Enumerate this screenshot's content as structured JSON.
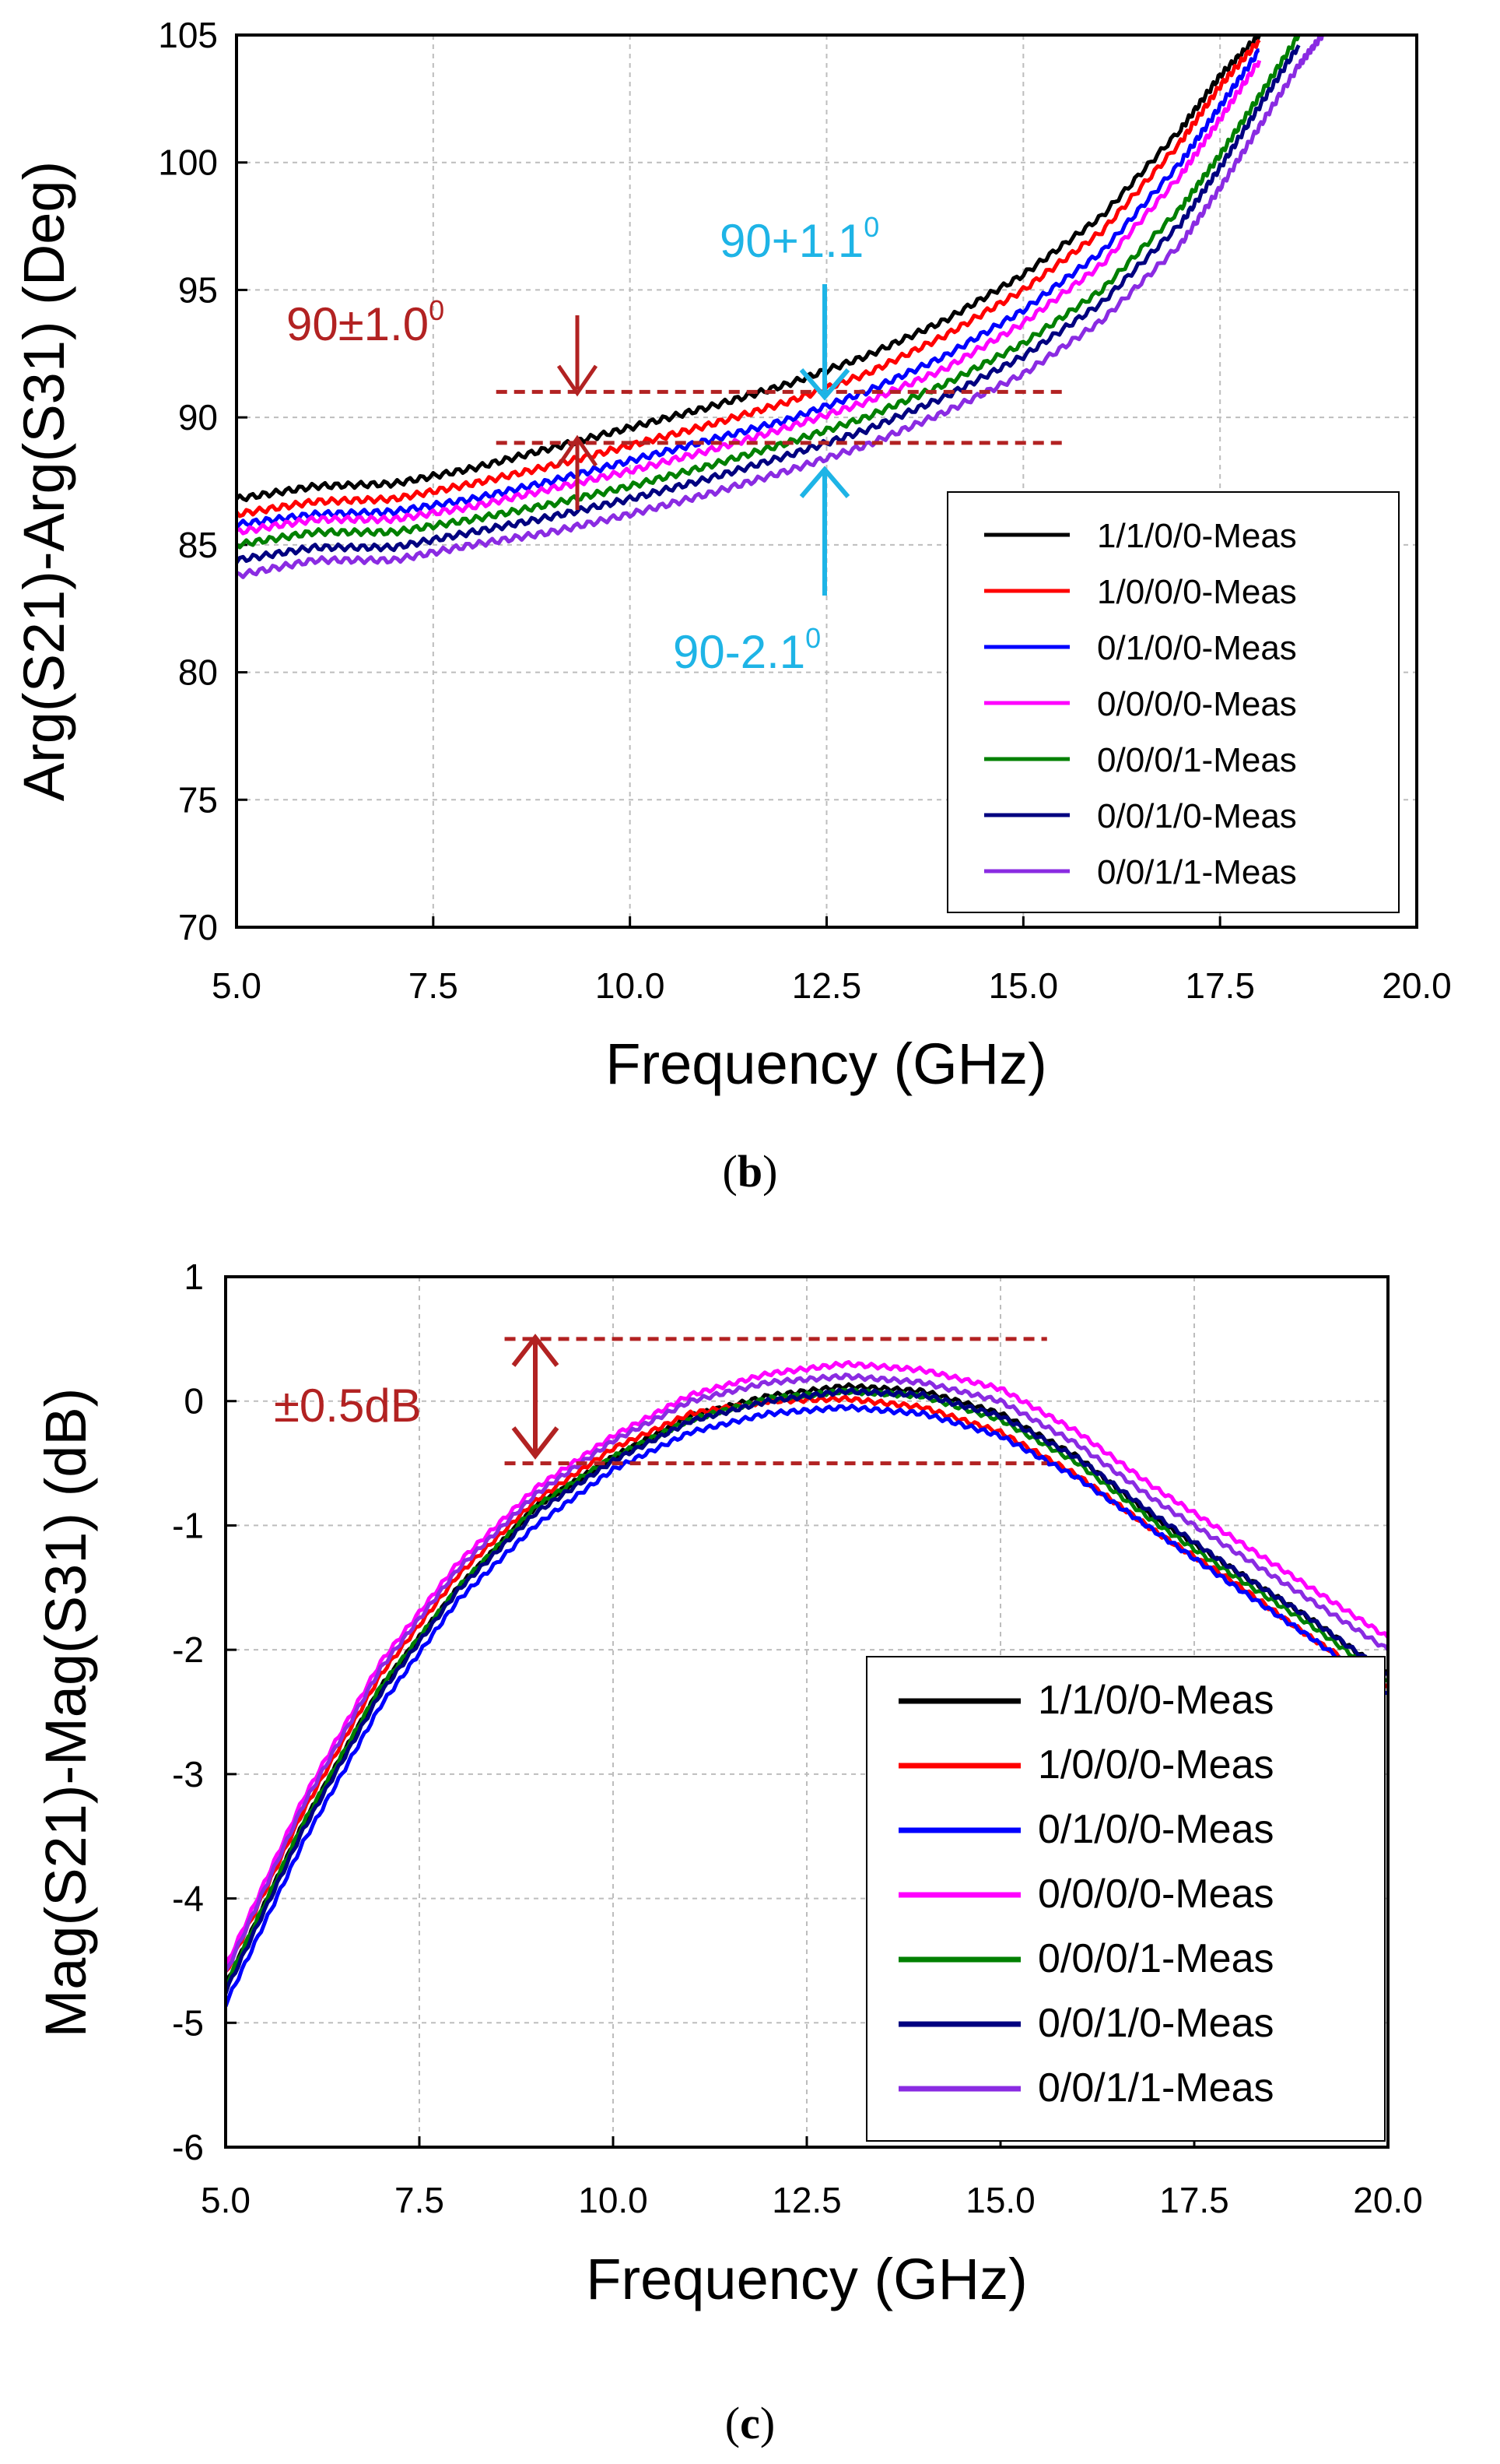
{
  "chart_data": [
    {
      "id": "b",
      "type": "line",
      "xlabel": "Frequency (GHz)",
      "ylabel": "Arg(S21)-Arg(S31) (Deg)",
      "xlim": [
        5.0,
        20.0
      ],
      "ylim": [
        70,
        105
      ],
      "xticks": [
        "5.0",
        "7.5",
        "10.0",
        "12.5",
        "15.0",
        "17.5",
        "20.0"
      ],
      "yticks": [
        "70",
        "75",
        "80",
        "85",
        "90",
        "95",
        "100",
        "105"
      ],
      "grid": true,
      "legend_position": "bottom-right",
      "caption": "b",
      "series": [
        {
          "name": "1/1/0/0-Meas",
          "color": "#000000",
          "x": [
            5.0,
            6.0,
            7.0,
            8.0,
            9.0,
            10.0,
            11.0,
            12.0,
            13.0,
            14.0,
            15.0,
            16.0,
            17.0,
            17.5,
            18.0
          ],
          "y": [
            86.8,
            87.3,
            87.4,
            88.0,
            88.8,
            89.6,
            90.4,
            91.3,
            92.4,
            93.8,
            95.6,
            97.9,
            101.3,
            103.4,
            105.0
          ]
        },
        {
          "name": "1/0/0/0-Meas",
          "color": "#ff0000",
          "x": [
            5.0,
            6.0,
            7.0,
            8.0,
            9.0,
            10.0,
            11.0,
            12.0,
            13.0,
            14.0,
            15.0,
            16.0,
            17.0,
            17.5,
            18.0
          ],
          "y": [
            86.2,
            86.7,
            86.8,
            87.4,
            88.1,
            88.9,
            89.7,
            90.6,
            91.7,
            93.2,
            95.0,
            97.3,
            100.8,
            103.0,
            104.8
          ]
        },
        {
          "name": "0/1/0/0-Meas",
          "color": "#0000ff",
          "x": [
            5.0,
            6.0,
            7.0,
            8.0,
            9.0,
            10.0,
            11.0,
            12.0,
            13.0,
            14.0,
            15.0,
            16.0,
            17.0,
            17.5,
            18.0
          ],
          "y": [
            85.8,
            86.2,
            86.3,
            86.8,
            87.5,
            88.3,
            89.1,
            89.9,
            91.0,
            92.4,
            94.2,
            96.5,
            100.0,
            102.2,
            104.4
          ]
        },
        {
          "name": "0/0/0/0-Meas",
          "color": "#ff00ff",
          "x": [
            5.0,
            6.0,
            7.0,
            8.0,
            9.0,
            10.0,
            11.0,
            12.0,
            13.0,
            14.0,
            15.0,
            16.0,
            17.0,
            17.5,
            18.0
          ],
          "y": [
            85.5,
            86.0,
            86.0,
            86.5,
            87.2,
            87.9,
            88.7,
            89.6,
            90.6,
            91.9,
            93.7,
            96.0,
            99.5,
            101.7,
            104.0
          ]
        },
        {
          "name": "0/0/0/1-Meas",
          "color": "#008000",
          "x": [
            5.0,
            6.0,
            7.0,
            8.0,
            9.0,
            10.0,
            11.0,
            12.0,
            13.0,
            14.0,
            15.0,
            16.0,
            17.0,
            17.5,
            18.0,
            18.5
          ],
          "y": [
            85.0,
            85.5,
            85.5,
            86.0,
            86.6,
            87.3,
            88.1,
            89.0,
            90.0,
            91.3,
            92.9,
            95.0,
            98.2,
            100.3,
            102.6,
            105.0
          ]
        },
        {
          "name": "0/0/1/0-Meas",
          "color": "#000080",
          "x": [
            5.0,
            6.0,
            7.0,
            8.0,
            9.0,
            10.0,
            11.0,
            12.0,
            13.0,
            14.0,
            15.0,
            16.0,
            17.0,
            17.5,
            18.0,
            18.5
          ],
          "y": [
            84.4,
            84.9,
            84.9,
            85.5,
            86.1,
            86.8,
            87.6,
            88.5,
            89.5,
            90.8,
            92.4,
            94.5,
            97.6,
            99.8,
            102.2,
            104.6
          ]
        },
        {
          "name": "0/0/1/1-Meas",
          "color": "#8a2be2",
          "x": [
            5.0,
            6.0,
            7.0,
            8.0,
            9.0,
            10.0,
            11.0,
            12.0,
            13.0,
            14.0,
            15.0,
            16.0,
            17.0,
            17.5,
            18.0,
            18.5,
            18.8
          ],
          "y": [
            83.8,
            84.4,
            84.4,
            85.0,
            85.5,
            86.2,
            87.0,
            87.9,
            88.9,
            90.2,
            91.7,
            93.8,
            96.8,
            99.0,
            101.4,
            103.8,
            105.0
          ]
        }
      ],
      "reference_lines": [
        {
          "y": 91,
          "x_range": [
            8.3,
            15.5
          ],
          "color": "#b22222"
        },
        {
          "y": 89,
          "x_range": [
            8.3,
            15.5
          ],
          "color": "#b22222"
        }
      ],
      "annotations": [
        {
          "text": "90±1.0",
          "sup": "0",
          "color": "#b22222",
          "x": 9.3
        },
        {
          "text": "90+1.1",
          "sup": "0",
          "color": "#1eb4e6",
          "x": 12.5
        },
        {
          "text": "90-2.1",
          "sup": "0",
          "color": "#1eb4e6",
          "x": 12.5
        }
      ]
    },
    {
      "id": "c",
      "type": "line",
      "xlabel": "Frequency (GHz)",
      "ylabel": "Mag(S21)-Mag(S31) (dB)",
      "xlim": [
        5.0,
        20.0
      ],
      "ylim": [
        -6,
        1
      ],
      "xticks": [
        "5.0",
        "7.5",
        "10.0",
        "12.5",
        "15.0",
        "17.5",
        "20.0"
      ],
      "yticks": [
        "-6",
        "-5",
        "-4",
        "-3",
        "-2",
        "-1",
        "0",
        "1"
      ],
      "grid": true,
      "legend_position": "bottom-right",
      "caption": "c",
      "series": [
        {
          "name": "1/1/0/0-Meas",
          "color": "#000000",
          "x": [
            5.0,
            6.0,
            7.0,
            8.0,
            9.0,
            10.0,
            11.0,
            12.0,
            13.0,
            14.0,
            15.0,
            16.0,
            17.0,
            18.0,
            19.0,
            20.0
          ],
          "y": [
            -4.7,
            -3.4,
            -2.3,
            -1.5,
            -0.85,
            -0.45,
            -0.12,
            0.04,
            0.12,
            0.08,
            -0.1,
            -0.45,
            -0.95,
            -1.35,
            -1.75,
            -2.2
          ]
        },
        {
          "name": "1/0/0/0-Meas",
          "color": "#ff0000",
          "x": [
            5.0,
            6.0,
            7.0,
            8.0,
            9.0,
            10.0,
            11.0,
            12.0,
            13.0,
            14.0,
            15.0,
            16.0,
            17.0,
            18.0,
            19.0,
            20.0
          ],
          "y": [
            -4.6,
            -3.3,
            -2.2,
            -1.4,
            -0.8,
            -0.38,
            -0.1,
            0.0,
            0.02,
            -0.05,
            -0.25,
            -0.6,
            -1.05,
            -1.45,
            -1.9,
            -2.3
          ]
        },
        {
          "name": "0/1/0/0-Meas",
          "color": "#0000ff",
          "x": [
            5.0,
            6.0,
            7.0,
            8.0,
            9.0,
            10.0,
            11.0,
            12.0,
            13.0,
            14.0,
            15.0,
            16.0,
            17.0,
            18.0,
            19.0,
            20.0
          ],
          "y": [
            -4.85,
            -3.55,
            -2.45,
            -1.6,
            -1.0,
            -0.55,
            -0.25,
            -0.1,
            -0.05,
            -0.1,
            -0.28,
            -0.62,
            -1.05,
            -1.48,
            -1.9,
            -2.35
          ]
        },
        {
          "name": "0/0/0/0-Meas",
          "color": "#ff00ff",
          "x": [
            5.0,
            6.0,
            7.0,
            8.0,
            9.0,
            10.0,
            11.0,
            12.0,
            13.0,
            14.0,
            15.0,
            16.0,
            17.0,
            18.0,
            19.0,
            20.0
          ],
          "y": [
            -4.55,
            -3.2,
            -2.1,
            -1.3,
            -0.7,
            -0.28,
            0.05,
            0.22,
            0.3,
            0.25,
            0.1,
            -0.25,
            -0.7,
            -1.1,
            -1.5,
            -1.9
          ]
        },
        {
          "name": "0/0/0/1-Meas",
          "color": "#008000",
          "x": [
            5.0,
            6.0,
            7.0,
            8.0,
            9.0,
            10.0,
            11.0,
            12.0,
            13.0,
            14.0,
            15.0,
            16.0,
            17.0,
            18.0,
            19.0,
            20.0
          ],
          "y": [
            -4.7,
            -3.4,
            -2.3,
            -1.5,
            -0.85,
            -0.45,
            -0.15,
            0.02,
            0.08,
            0.04,
            -0.15,
            -0.5,
            -0.98,
            -1.4,
            -1.8,
            -2.25
          ]
        },
        {
          "name": "0/0/1/0-Meas",
          "color": "#000080",
          "x": [
            5.0,
            6.0,
            7.0,
            8.0,
            9.0,
            10.0,
            11.0,
            12.0,
            13.0,
            14.0,
            15.0,
            16.0,
            17.0,
            18.0,
            19.0,
            20.0
          ],
          "y": [
            -4.75,
            -3.45,
            -2.35,
            -1.52,
            -0.9,
            -0.48,
            -0.16,
            0.0,
            0.08,
            0.05,
            -0.12,
            -0.46,
            -0.92,
            -1.35,
            -1.75,
            -2.2
          ]
        },
        {
          "name": "0/0/1/1-Meas",
          "color": "#8a2be2",
          "x": [
            5.0,
            6.0,
            7.0,
            8.0,
            9.0,
            10.0,
            11.0,
            12.0,
            13.0,
            14.0,
            15.0,
            16.0,
            17.0,
            18.0,
            19.0,
            20.0
          ],
          "y": [
            -4.6,
            -3.25,
            -2.15,
            -1.35,
            -0.75,
            -0.32,
            0.0,
            0.15,
            0.2,
            0.15,
            0.0,
            -0.35,
            -0.8,
            -1.2,
            -1.6,
            -2.0
          ]
        }
      ],
      "reference_lines": [
        {
          "y": 0.5,
          "x_range": [
            8.6,
            15.6
          ],
          "color": "#b22222"
        },
        {
          "y": -0.5,
          "x_range": [
            8.6,
            15.6
          ],
          "color": "#b22222"
        }
      ],
      "annotations": [
        {
          "text": "±0.5dB",
          "color": "#b22222",
          "x": 9.0
        }
      ]
    }
  ]
}
